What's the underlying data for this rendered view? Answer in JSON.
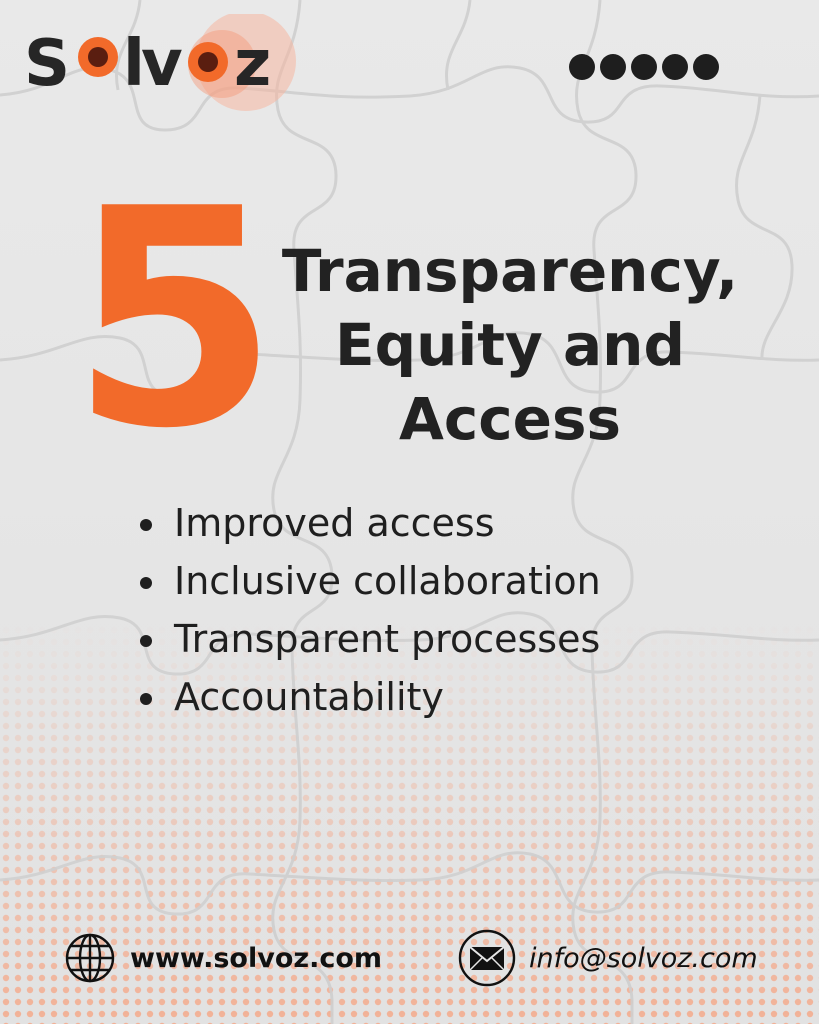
{
  "brand": {
    "logo_letters": [
      "S",
      "o",
      "l",
      "v",
      "o",
      "z"
    ],
    "accent_color": "#f26a2a",
    "dark_color": "#222222"
  },
  "pager": {
    "dot_count": 5,
    "dot_icon": "pagination-dot-icon"
  },
  "headline": {
    "number": "5",
    "title_lines": [
      "Transparency,",
      "Equity and",
      "Access"
    ]
  },
  "bullets": [
    "Improved access",
    "Inclusive collaboration",
    "Transparent processes",
    "Accountability"
  ],
  "footer": {
    "website": "www.solvoz.com",
    "website_icon": "globe-icon",
    "email": "info@solvoz.com",
    "email_icon": "envelope-icon"
  },
  "background": {
    "texture": "jigsaw-puzzle",
    "base_color": "#e6e6e6",
    "halftone_color": "#f5a98a"
  }
}
